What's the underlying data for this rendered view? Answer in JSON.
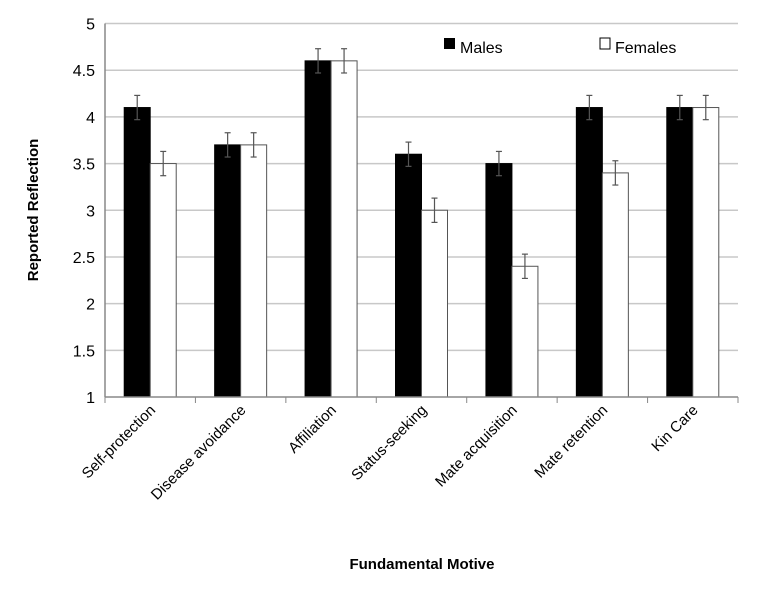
{
  "chart_data": {
    "type": "bar",
    "title": "",
    "xlabel": "Fundamental Motive",
    "ylabel": "Reported Reflection",
    "ylim": [
      1,
      5
    ],
    "yticks": [
      "1",
      "1.5",
      "2",
      "2.5",
      "3",
      "3.5",
      "4",
      "4.5",
      "5"
    ],
    "grid": true,
    "legend_position": "top-right",
    "categories": [
      "Self-protection",
      "Disease avoidance",
      "Affiliation",
      "Status-seeking",
      "Mate acquisition",
      "Mate retention",
      "Kin Care"
    ],
    "series": [
      {
        "name": "Males",
        "color": "#000000",
        "values": [
          4.1,
          3.7,
          4.6,
          3.6,
          3.5,
          4.1,
          4.1
        ],
        "error": [
          0.13,
          0.13,
          0.13,
          0.13,
          0.13,
          0.13,
          0.13
        ]
      },
      {
        "name": "Females",
        "color": "#ffffff",
        "values": [
          3.5,
          3.7,
          4.6,
          3.0,
          2.4,
          3.4,
          4.1
        ],
        "error": [
          0.13,
          0.13,
          0.13,
          0.13,
          0.13,
          0.13,
          0.13
        ]
      }
    ]
  }
}
